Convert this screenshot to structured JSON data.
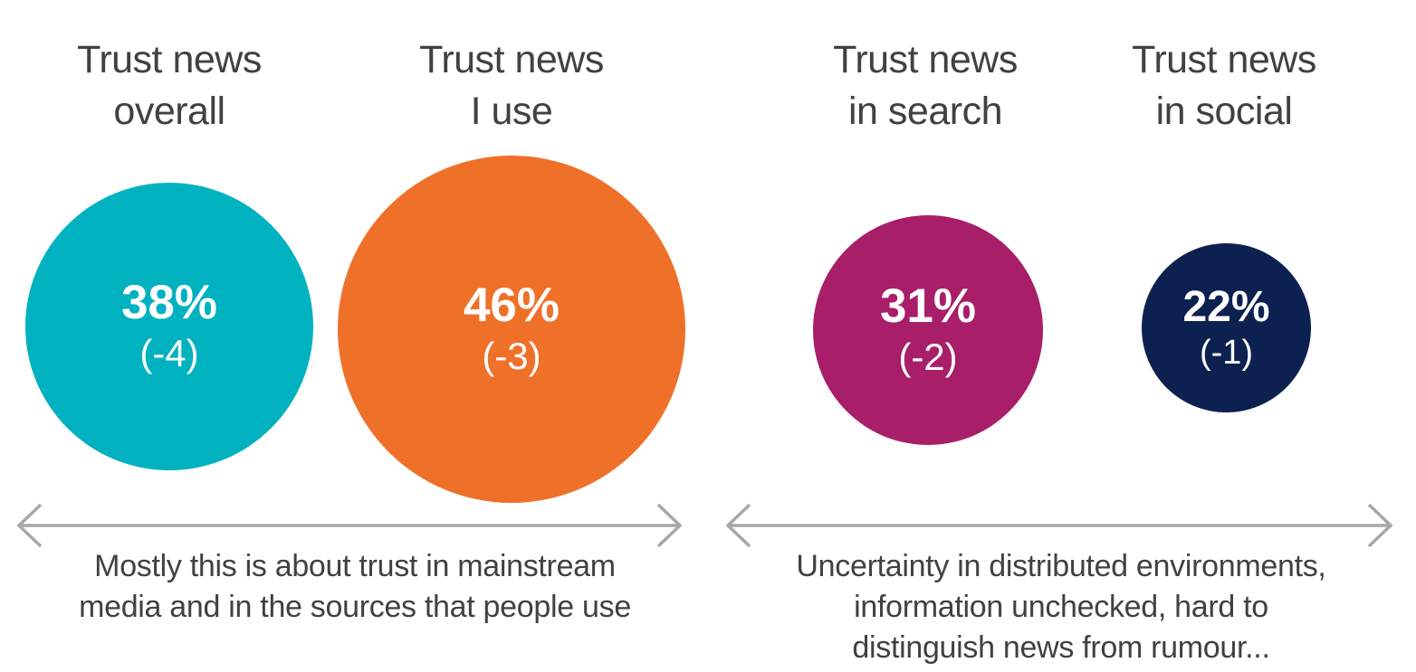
{
  "chart_data": {
    "type": "bubble",
    "categories": [
      "Trust news overall",
      "Trust news I use",
      "Trust news in search",
      "Trust news in social"
    ],
    "values": [
      38,
      46,
      31,
      22
    ],
    "changes": [
      -4,
      -3,
      -2,
      -1
    ],
    "unit": "%",
    "colors": [
      "#00b2bf",
      "#ef7129",
      "#a91e69",
      "#0c2150"
    ],
    "legend_position": "none",
    "grid": false,
    "annotations": [
      {
        "spans": [
          "Trust news overall",
          "Trust news I use"
        ],
        "text": "Mostly this is about trust in mainstream media and in the sources that people use"
      },
      {
        "spans": [
          "Trust news in search",
          "Trust news in social"
        ],
        "text": "Uncertainty in distributed environments, information unchecked, hard to distinguish news from rumour..."
      }
    ]
  },
  "bubbles": [
    {
      "title_line1": "Trust news",
      "title_line2": "overall",
      "value": "38%",
      "change": "(-4)",
      "color": "#00b2bf",
      "diameter": 318
    },
    {
      "title_line1": "Trust news",
      "title_line2": "I use",
      "value": "46%",
      "change": "(-3)",
      "color": "#ef7129",
      "diameter": 384
    },
    {
      "title_line1": "Trust news",
      "title_line2": "in search",
      "value": "31%",
      "change": "(-2)",
      "color": "#a91e69",
      "diameter": 254
    },
    {
      "title_line1": "Trust news",
      "title_line2": "in social",
      "value": "22%",
      "change": "(-1)",
      "color": "#0c2150",
      "diameter": 187
    }
  ],
  "captions": {
    "left": {
      "lines": [
        "Mostly this is about trust in mainstream",
        "media and in the sources that people use"
      ]
    },
    "right": {
      "lines": [
        "Uncertainty in distributed environments,",
        "information unchecked, hard to",
        "distinguish news from rumour..."
      ]
    }
  },
  "colors": {
    "background": "#ffffff",
    "text": "#414042",
    "label": "#ffffff",
    "arrow": "#a7a7a9"
  }
}
